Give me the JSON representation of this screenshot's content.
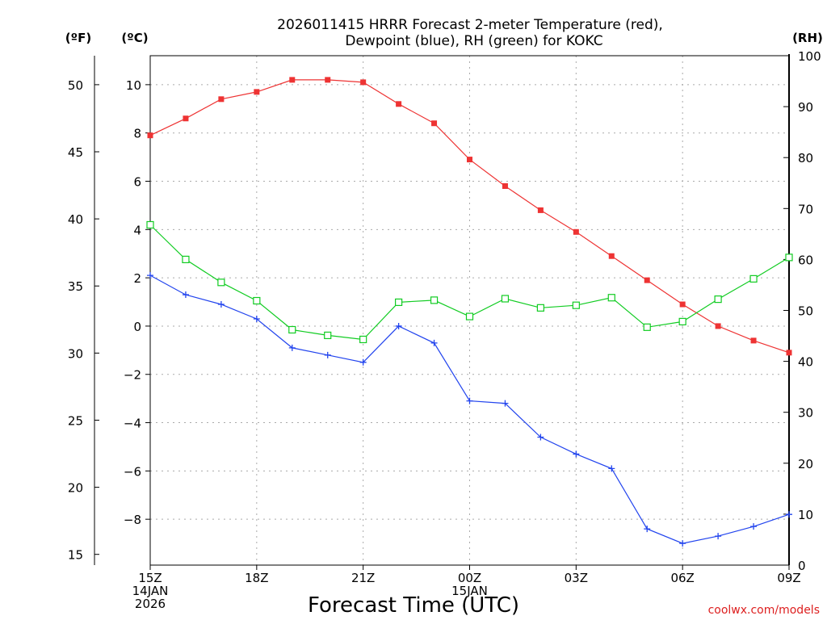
{
  "chart_data": {
    "type": "line",
    "title_lines": [
      "2026011415 HRRR Forecast 2-meter Temperature (red),",
      "Dewpoint (blue), RH (green) for KOKC"
    ],
    "xlabel": "Forecast Time (UTC)",
    "credit": "coolwx.com/models",
    "grid": true,
    "x_hours": [
      15,
      16,
      17,
      18,
      19,
      20,
      21,
      22,
      23,
      24,
      25,
      26,
      27,
      28,
      29,
      30,
      31,
      32,
      33
    ],
    "x_ticks": [
      {
        "hour": 15,
        "lines": [
          "15Z",
          "14JAN",
          "2026"
        ]
      },
      {
        "hour": 18,
        "lines": [
          "18Z"
        ]
      },
      {
        "hour": 21,
        "lines": [
          "21Z"
        ]
      },
      {
        "hour": 24,
        "lines": [
          "00Z",
          "15JAN"
        ]
      },
      {
        "hour": 27,
        "lines": [
          "03Z"
        ]
      },
      {
        "hour": 30,
        "lines": [
          "06Z"
        ]
      },
      {
        "hour": 33,
        "lines": [
          "09Z"
        ]
      }
    ],
    "xlim": [
      15,
      33
    ],
    "axes": {
      "celsius": {
        "label": "(ºC)",
        "ylim": [
          -9.9,
          11.2
        ],
        "ticks": [
          -8,
          -6,
          -4,
          -2,
          0,
          2,
          4,
          6,
          8,
          10
        ]
      },
      "fahrenheit": {
        "label": "(ºF)",
        "ylim": [
          14.2,
          52.16
        ],
        "ticks": [
          15,
          20,
          25,
          30,
          35,
          40,
          45,
          50
        ]
      },
      "rh": {
        "label": "(RH)",
        "ylim": [
          0,
          100
        ],
        "ticks": [
          0,
          10,
          20,
          30,
          40,
          50,
          60,
          70,
          80,
          90,
          100
        ]
      }
    },
    "series": [
      {
        "name": "2-meter Temperature",
        "color": "#ee3333",
        "marker": "filled-square",
        "axis": "celsius",
        "values": [
          7.9,
          8.6,
          9.4,
          9.7,
          10.2,
          10.2,
          10.1,
          9.2,
          8.4,
          6.9,
          5.8,
          4.8,
          3.9,
          2.9,
          1.9,
          0.9,
          0.0,
          -0.6,
          -1.1
        ]
      },
      {
        "name": "Dewpoint",
        "color": "#2244ee",
        "marker": "plus",
        "axis": "celsius",
        "values": [
          2.1,
          1.3,
          0.9,
          0.3,
          -0.9,
          -1.2,
          -1.5,
          0.0,
          -0.7,
          -3.1,
          -3.2,
          -4.6,
          -5.3,
          -5.9,
          -8.4,
          -9.0,
          -8.7,
          -8.3,
          -7.8
        ]
      },
      {
        "name": "RH",
        "color": "#11cc22",
        "marker": "open-square",
        "axis": "rh",
        "values": [
          66.8,
          60.0,
          55.5,
          51.9,
          46.2,
          45.1,
          44.3,
          51.6,
          52.0,
          48.8,
          52.3,
          50.5,
          51.0,
          52.5,
          46.7,
          47.8,
          52.2,
          56.2,
          60.4
        ]
      }
    ]
  }
}
